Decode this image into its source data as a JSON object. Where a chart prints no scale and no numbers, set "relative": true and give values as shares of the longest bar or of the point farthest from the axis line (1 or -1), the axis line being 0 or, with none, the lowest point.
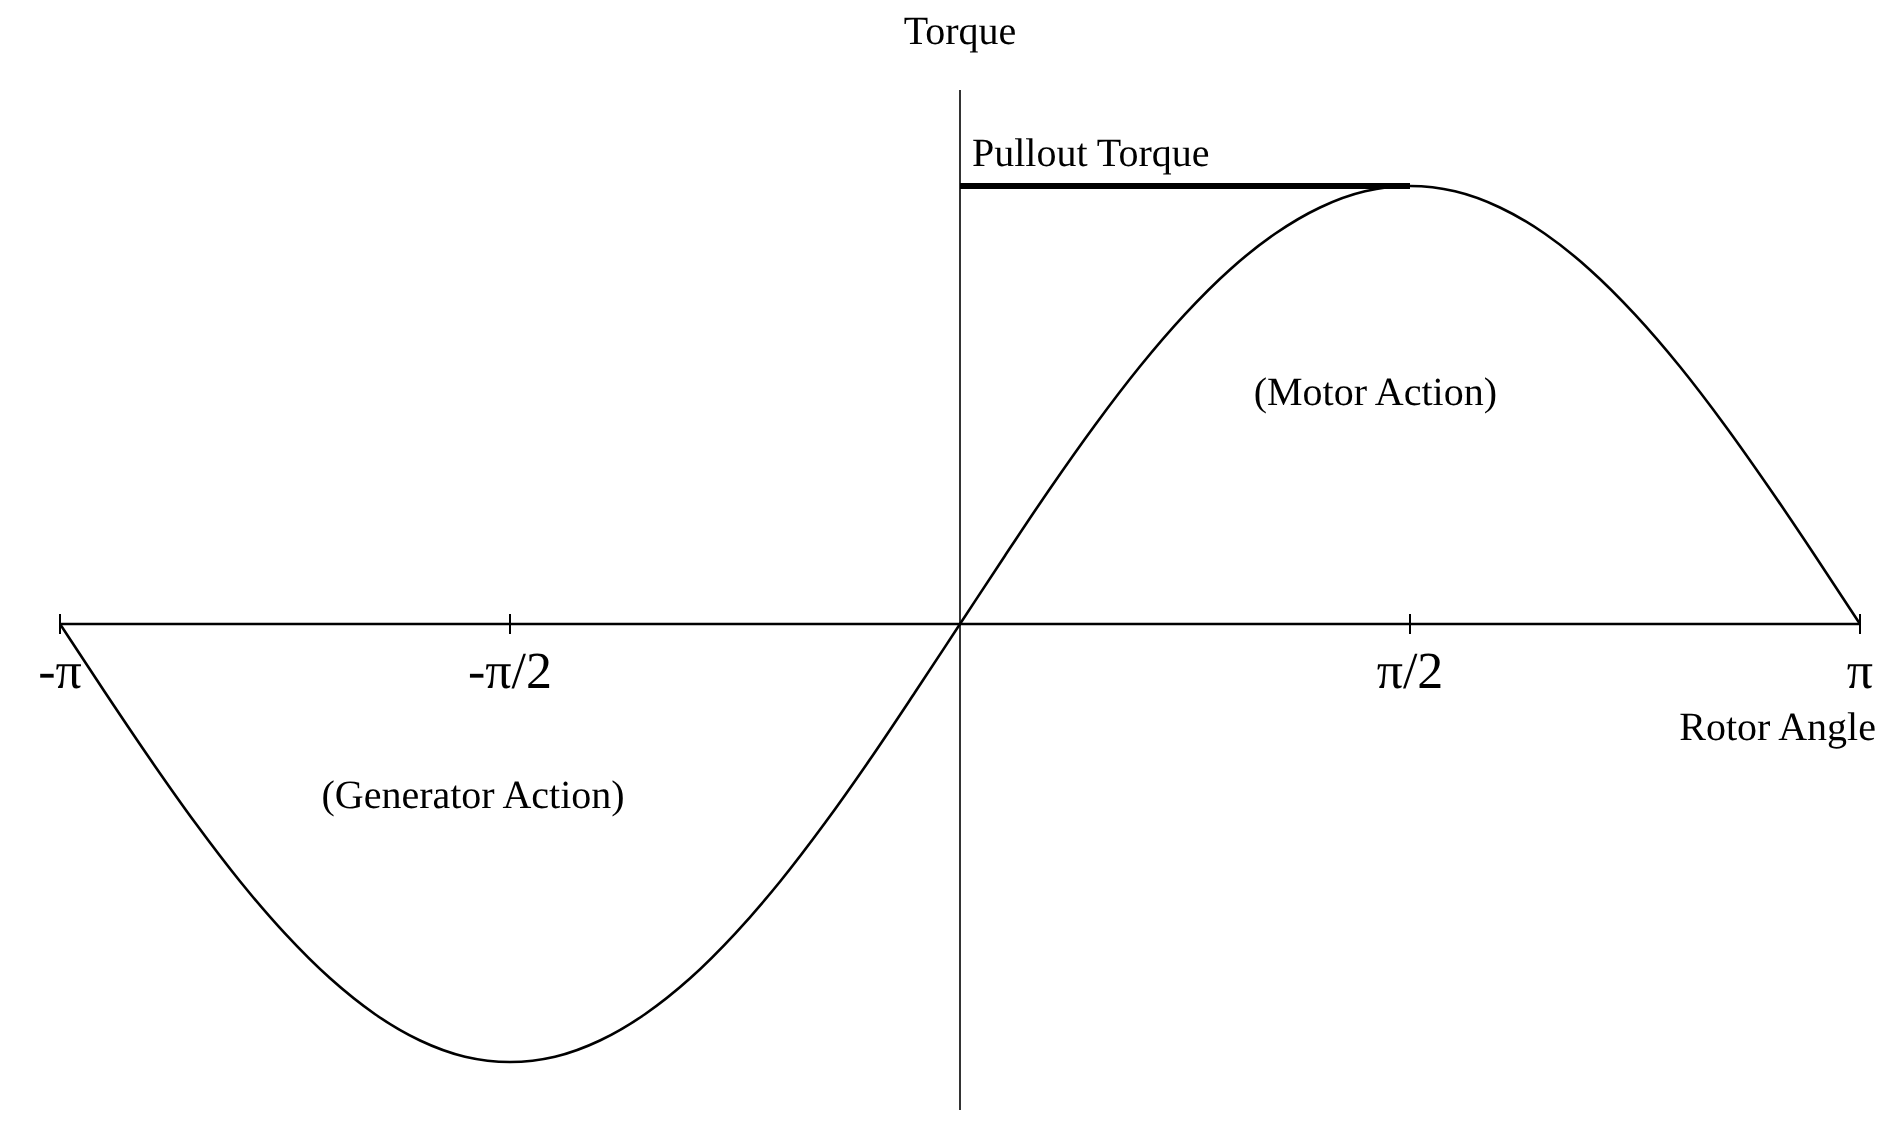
{
  "chart_data": {
    "type": "line",
    "relative": true,
    "xlabel": "Rotor Angle",
    "ylabel": "Torque",
    "xlim": [
      -3.142,
      3.142
    ],
    "xticks": [
      {
        "value": -3.142,
        "label": "-π"
      },
      {
        "value": -1.571,
        "label": "-π/2"
      },
      {
        "value": 1.571,
        "label": "π/2"
      },
      {
        "value": 3.142,
        "label": "π"
      }
    ],
    "x": [
      -3.142,
      -2.985,
      -2.827,
      -2.67,
      -2.513,
      -2.356,
      -2.199,
      -2.042,
      -1.885,
      -1.728,
      -1.571,
      -1.414,
      -1.257,
      -1.1,
      -0.942,
      -0.785,
      -0.628,
      -0.471,
      -0.314,
      -0.157,
      0,
      0.157,
      0.314,
      0.471,
      0.628,
      0.785,
      0.942,
      1.1,
      1.257,
      1.414,
      1.571,
      1.728,
      1.885,
      2.042,
      2.199,
      2.356,
      2.513,
      2.67,
      2.827,
      2.985,
      3.142
    ],
    "series": [
      {
        "color": "#000000",
        "values": [
          0,
          -0.156,
          -0.309,
          -0.454,
          -0.588,
          -0.707,
          -0.809,
          -0.891,
          -0.951,
          -0.988,
          -1,
          -0.988,
          -0.951,
          -0.891,
          -0.809,
          -0.707,
          -0.588,
          -0.454,
          -0.309,
          -0.156,
          0,
          0.156,
          0.309,
          0.454,
          0.588,
          0.707,
          0.809,
          0.891,
          0.951,
          0.988,
          1,
          0.988,
          0.951,
          0.891,
          0.809,
          0.707,
          0.588,
          0.454,
          0.309,
          0.156,
          0
        ]
      }
    ],
    "ref_lines": [
      {
        "axis": "y",
        "value": 1,
        "label": "Pullout Torque"
      }
    ],
    "annotations": [
      "(Motor Action)",
      "(Generator Action)"
    ],
    "grid": false,
    "marker": "none",
    "line_style": "solid"
  }
}
